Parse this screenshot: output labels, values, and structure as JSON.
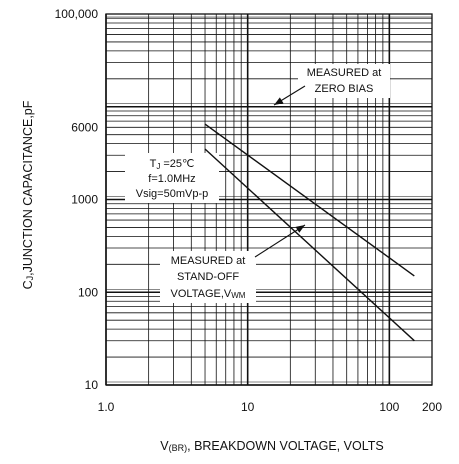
{
  "chart_data": {
    "type": "line",
    "xscale": "log",
    "yscale": "log",
    "xlim": [
      1,
      200
    ],
    "ylim": [
      10,
      100000
    ],
    "grid": true,
    "xlabel_prefix": "V",
    "xlabel_sub": "(BR)",
    "xlabel_rest": ", BREAKDOWN VOLTAGE, VOLTS",
    "ylabel": "C",
    "ylabel_sub": "J",
    "ylabel_rest": ",JUNCTION CAPACITANCE,pF",
    "x_ticks": [
      {
        "value": 1,
        "label": "1.0"
      },
      {
        "value": 10,
        "label": "10"
      },
      {
        "value": 100,
        "label": "100"
      },
      {
        "value": 200,
        "label": "200"
      }
    ],
    "y_ticks": [
      {
        "value": 10,
        "label": "10"
      },
      {
        "value": 100,
        "label": "100"
      },
      {
        "value": 1000,
        "label": "1000"
      },
      {
        "value": 6000,
        "label": "6000"
      },
      {
        "value": 100000,
        "label": "100,000"
      }
    ],
    "series": [
      {
        "name": "MEASURED at ZERO BIAS",
        "x": [
          5,
          150
        ],
        "y": [
          6500,
          150
        ],
        "color": "#111111"
      },
      {
        "name": "MEASURED at STAND-OFF VOLTAGE,VWM",
        "x": [
          5,
          150
        ],
        "y": [
          3500,
          30
        ],
        "color": "#111111"
      }
    ],
    "annotations": {
      "zero_bias": {
        "line1": "MEASURED at",
        "line2": "ZERO BIAS"
      },
      "standoff": {
        "line1": "MEASURED at",
        "line2": "STAND-OFF",
        "line3_main": "VOLTAGE,V",
        "line3_sub": "WM"
      },
      "conditions": {
        "tj_main": "T",
        "tj_sub": "J",
        "tj_rest": " =25℃",
        "freq": "f=1.0MHz",
        "vsig": "Vsig=50mVp-p"
      }
    }
  }
}
